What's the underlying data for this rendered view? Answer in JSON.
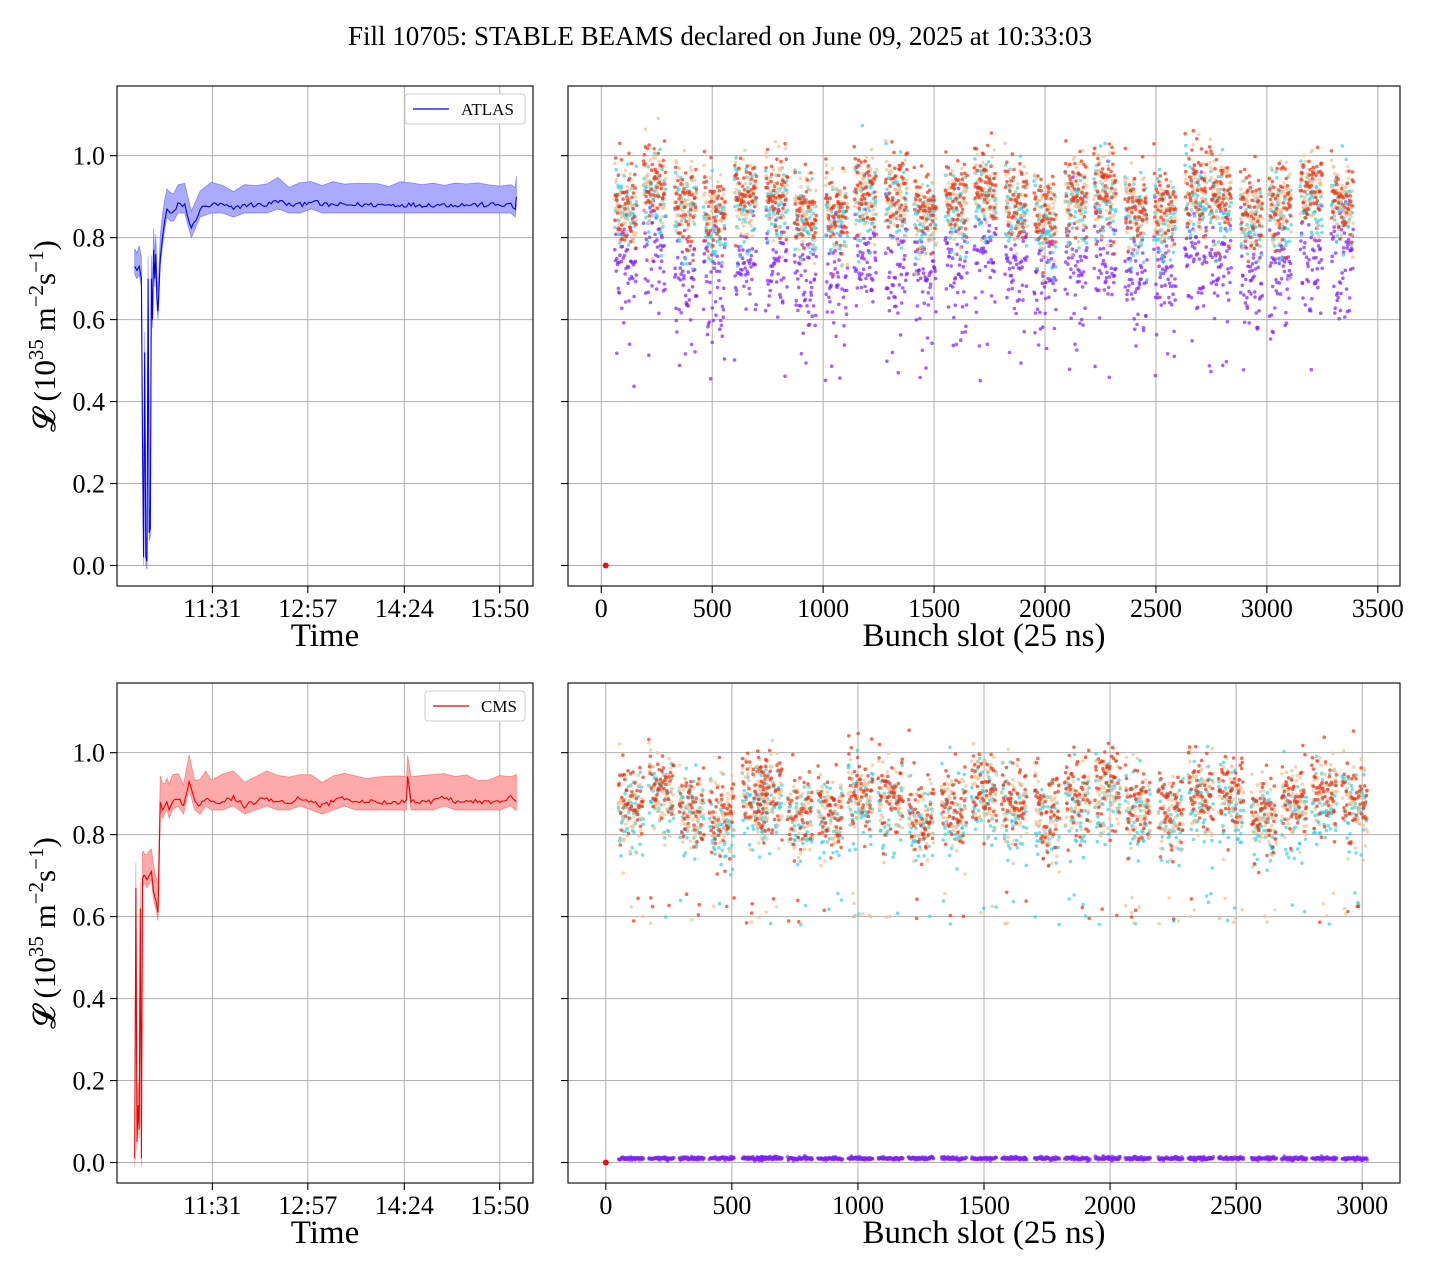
{
  "title": "Fill 10705: STABLE BEAMS declared on June 09, 2025 at 10:33:03",
  "colors": {
    "atlas": "#0000ee",
    "atlas_band": "#aaaaff",
    "cms": "#ee0000",
    "cms_band": "#ffaaaa",
    "grid": "#b0b0b0"
  },
  "chart_data": [
    {
      "type": "line",
      "name": "atlas-luminosity-vs-time",
      "legend": "ATLAS",
      "legend_position": "top-right",
      "xlabel": "Time",
      "ylabel": "L (10^35 m^-2 s^-1)",
      "x_ticks": [
        "11:31",
        "12:57",
        "14:24",
        "15:50"
      ],
      "x_tick_minutes": [
        691,
        777,
        864,
        950
      ],
      "xlim_minutes": [
        605,
        980
      ],
      "y_ticks": [
        "0.0",
        "0.2",
        "0.4",
        "0.6",
        "0.8",
        "1.0"
      ],
      "ylim": [
        -0.05,
        1.17
      ],
      "grid": true,
      "series": [
        {
          "legend_name": "ATLAS",
          "x_minutes": [
            621,
            623,
            625,
            627,
            628,
            629,
            630,
            631,
            632,
            633,
            634,
            635,
            636,
            637,
            638,
            639,
            640,
            641,
            642,
            644,
            646,
            648,
            650,
            653,
            656,
            660,
            666,
            672,
            680,
            690,
            700,
            710,
            720,
            730,
            740,
            750,
            760,
            770,
            780,
            790,
            800,
            810,
            820,
            830,
            840,
            850,
            860,
            870,
            880,
            890,
            900,
            910,
            920,
            930,
            940,
            950,
            960,
            964,
            965
          ],
          "y": [
            0.73,
            0.72,
            0.73,
            0.7,
            0.3,
            0.02,
            0.52,
            0.02,
            0.01,
            0.7,
            0.08,
            0.09,
            0.7,
            0.6,
            0.77,
            0.7,
            0.76,
            0.65,
            0.62,
            0.75,
            0.8,
            0.84,
            0.87,
            0.86,
            0.86,
            0.88,
            0.88,
            0.82,
            0.87,
            0.88,
            0.88,
            0.87,
            0.88,
            0.88,
            0.88,
            0.89,
            0.88,
            0.88,
            0.89,
            0.88,
            0.88,
            0.88,
            0.88,
            0.88,
            0.88,
            0.88,
            0.88,
            0.88,
            0.88,
            0.88,
            0.88,
            0.88,
            0.88,
            0.88,
            0.88,
            0.88,
            0.88,
            0.87,
            0.9
          ],
          "band_half_width": 0.05
        }
      ]
    },
    {
      "type": "scatter",
      "name": "atlas-bunch-luminosity",
      "xlabel": "Bunch slot (25 ns)",
      "x_ticks": [
        "0",
        "500",
        "1000",
        "1500",
        "2000",
        "2500",
        "3000",
        "3500"
      ],
      "xlim": [
        -150,
        3600
      ],
      "ylim": [
        -0.05,
        1.17
      ],
      "y_tick_values": [
        0,
        0.2,
        0.4,
        0.6,
        0.8,
        1.0
      ],
      "grid": true,
      "first_filled_slot": 60,
      "last_filled_slot": 3430,
      "train_starts": [
        60,
        190,
        330,
        460,
        600,
        740,
        870,
        1010,
        1140,
        1280,
        1410,
        1550,
        1680,
        1820,
        1950,
        2090,
        2220,
        2360,
        2490,
        2630,
        2740,
        2880,
        3010,
        3150,
        3290
      ],
      "train_length_slots": 100,
      "series_colors": [
        "#8020ff",
        "#3ad0e0",
        "#f4c090",
        "#ee3010"
      ],
      "population_means": [
        0.72,
        0.86,
        0.88,
        0.89
      ],
      "population_spread": [
        0.07,
        0.05,
        0.05,
        0.05
      ],
      "empty_bunch_value": [
        20,
        0.0
      ]
    },
    {
      "type": "line",
      "name": "cms-luminosity-vs-time",
      "legend": "CMS",
      "legend_position": "top-right",
      "xlabel": "Time",
      "ylabel": "L (10^35 m^-2 s^-1)",
      "x_ticks": [
        "11:31",
        "12:57",
        "14:24",
        "15:50"
      ],
      "x_tick_minutes": [
        691,
        777,
        864,
        950
      ],
      "xlim_minutes": [
        605,
        980
      ],
      "y_ticks": [
        "0.0",
        "0.2",
        "0.4",
        "0.6",
        "0.8",
        "1.0"
      ],
      "ylim": [
        -0.05,
        1.17
      ],
      "grid": true,
      "series": [
        {
          "legend_name": "CMS",
          "x_minutes": [
            621,
            622,
            623,
            624,
            625,
            626,
            627,
            628,
            629,
            630,
            632,
            634,
            636,
            638,
            640,
            642,
            644,
            646,
            648,
            650,
            652,
            655,
            660,
            665,
            670,
            675,
            680,
            685,
            690,
            700,
            710,
            720,
            730,
            740,
            750,
            760,
            770,
            780,
            790,
            800,
            810,
            820,
            830,
            840,
            850,
            860,
            866,
            867,
            870,
            880,
            890,
            900,
            910,
            920,
            930,
            940,
            950,
            960,
            964,
            965
          ],
          "y": [
            0.01,
            0.67,
            0.05,
            0.14,
            0.08,
            0.62,
            0.01,
            0.69,
            0.7,
            0.7,
            0.69,
            0.7,
            0.71,
            0.66,
            0.64,
            0.61,
            0.88,
            0.86,
            0.87,
            0.88,
            0.86,
            0.88,
            0.89,
            0.87,
            0.93,
            0.88,
            0.87,
            0.89,
            0.88,
            0.88,
            0.89,
            0.87,
            0.88,
            0.89,
            0.88,
            0.88,
            0.89,
            0.88,
            0.87,
            0.88,
            0.89,
            0.88,
            0.88,
            0.88,
            0.88,
            0.88,
            0.88,
            0.94,
            0.88,
            0.88,
            0.88,
            0.89,
            0.88,
            0.88,
            0.88,
            0.88,
            0.88,
            0.89,
            0.88,
            0.88
          ],
          "band_half_width": 0.06
        }
      ]
    },
    {
      "type": "scatter",
      "name": "cms-bunch-luminosity",
      "xlabel": "Bunch slot (25 ns)",
      "x_ticks": [
        "0",
        "500",
        "1000",
        "1500",
        "2000",
        "2500",
        "3000"
      ],
      "xlim": [
        -150,
        3150
      ],
      "ylim": [
        -0.05,
        1.17
      ],
      "y_tick_values": [
        0,
        0.2,
        0.4,
        0.6,
        0.8,
        1.0
      ],
      "grid": true,
      "first_filled_slot": 50,
      "last_filled_slot": 3040,
      "train_starts": [
        50,
        170,
        290,
        410,
        540,
        600,
        720,
        840,
        960,
        1080,
        1200,
        1330,
        1450,
        1570,
        1700,
        1820,
        1940,
        2060,
        2190,
        2310,
        2430,
        2560,
        2680,
        2800,
        2920
      ],
      "train_length_slots": 100,
      "series_colors": [
        "#8020ff",
        "#3ad0e0",
        "#f4c090",
        "#ee3010"
      ],
      "population_means": [
        0.01,
        0.85,
        0.87,
        0.88
      ],
      "population_spread": [
        0.003,
        0.05,
        0.05,
        0.05
      ],
      "empty_bunch_value": [
        0,
        0.0
      ]
    }
  ]
}
